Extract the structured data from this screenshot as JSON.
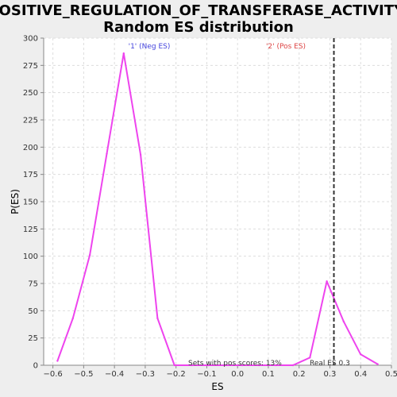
{
  "chart_data": {
    "type": "line",
    "title_line1": "POSITIVE_REGULATION_OF_TRANSFERASE_ACTIVITY:",
    "title_line2": "Random ES distribution",
    "xlabel": "ES",
    "ylabel": "P(ES)",
    "xlim": [
      -0.63,
      0.5
    ],
    "ylim": [
      0,
      300
    ],
    "x_ticks": [
      -0.6,
      -0.5,
      -0.4,
      -0.3,
      -0.2,
      -0.1,
      0.0,
      0.1,
      0.2,
      0.3,
      0.4,
      0.5
    ],
    "x_tick_labels": [
      "−0.6",
      "−0.5",
      "−0.4",
      "−0.3",
      "−0.2",
      "−0.1",
      "0.0",
      "0.1",
      "0.2",
      "0.3",
      "0.4",
      "0.5"
    ],
    "y_ticks": [
      0,
      25,
      50,
      75,
      100,
      125,
      150,
      175,
      200,
      225,
      250,
      275,
      300
    ],
    "grid": true,
    "series": [
      {
        "color": "#ee44ee",
        "x": [
          -0.585,
          -0.535,
          -0.48,
          -0.425,
          -0.37,
          -0.315,
          -0.26,
          -0.205,
          -0.15,
          -0.095,
          -0.04,
          0.015,
          0.07,
          0.125,
          0.18,
          0.235,
          0.29,
          0.345,
          0.4,
          0.455
        ],
        "y": [
          4,
          43,
          101,
          194,
          286,
          193,
          43,
          0,
          0,
          0,
          0,
          0,
          0,
          0,
          0,
          7,
          77,
          40,
          10,
          1
        ]
      }
    ],
    "real_es": 0.313,
    "annotations": {
      "neg_label": "'1' (Neg ES)",
      "neg_color": "#4444dd",
      "pos_label": "'2' (Pos ES)",
      "pos_color": "#dd4444",
      "sets_with_pos": "Sets with pos scores: 13%",
      "real_es_label": "Real ES 0.3"
    }
  }
}
